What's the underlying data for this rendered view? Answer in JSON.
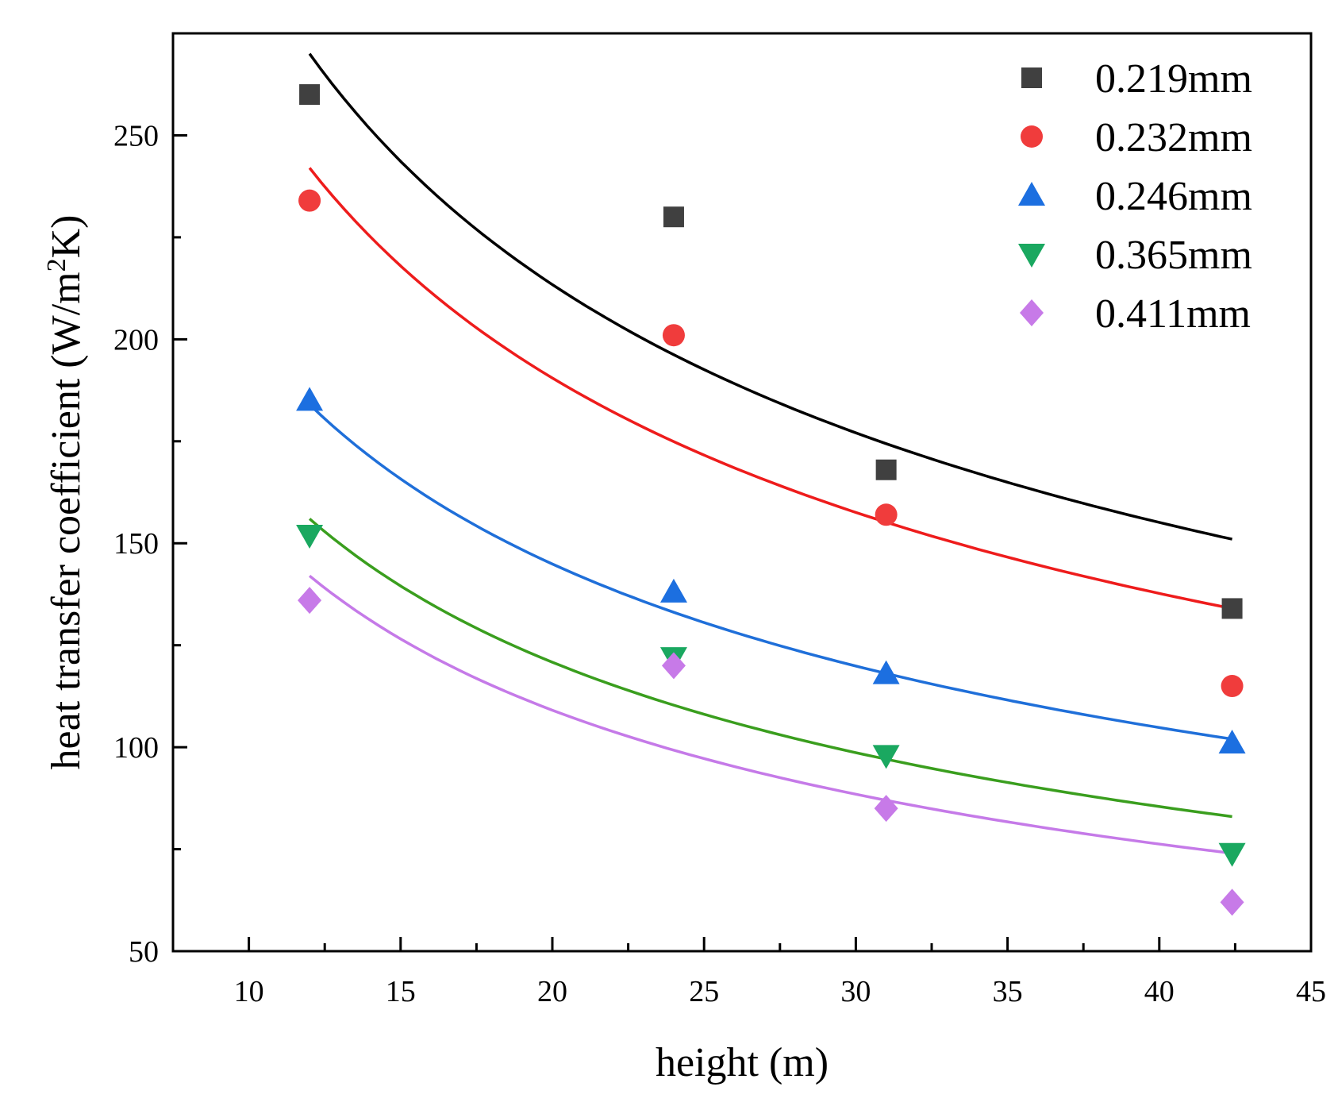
{
  "chart_data": {
    "type": "scatter",
    "title": "",
    "xlabel": "height (m)",
    "ylabel_parts": {
      "main": "heat transfer coefficient (W/m",
      "sup": "2",
      "end": "K)"
    },
    "xlim": [
      7.5,
      45
    ],
    "ylim": [
      50,
      275
    ],
    "xticks": [
      10,
      15,
      20,
      25,
      30,
      35,
      40,
      45
    ],
    "xticks_minor": [
      12.5,
      17.5,
      22.5,
      27.5,
      32.5,
      37.5,
      42.5
    ],
    "yticks": [
      50,
      100,
      150,
      200,
      250
    ],
    "yticks_minor": [
      75,
      125,
      175,
      225
    ],
    "x": [
      12,
      24,
      31,
      42.4
    ],
    "legend_position": "top-right",
    "series": [
      {
        "name": "0.219mm",
        "marker": "square",
        "color": "#404040",
        "line_color": "#000000",
        "values": [
          260,
          230,
          168,
          134
        ],
        "fit": [
          270,
          197,
          175,
          151
        ]
      },
      {
        "name": "0.232mm",
        "marker": "circle",
        "color": "#f03c3c",
        "line_color": "#ee1c1c",
        "values": [
          234,
          201,
          157,
          115
        ],
        "fit": [
          242,
          176,
          156,
          134
        ]
      },
      {
        "name": "0.246mm",
        "marker": "triangle-up",
        "color": "#1c6fe0",
        "line_color": "#1f6fd9",
        "values": [
          185,
          138,
          118,
          101
        ],
        "fit": [
          184,
          133,
          118,
          102
        ]
      },
      {
        "name": "0.365mm",
        "marker": "triangle-down",
        "color": "#1aa860",
        "line_color": "#3a9e1e",
        "values": [
          152,
          122,
          98,
          74
        ],
        "fit": [
          156,
          111,
          97,
          83
        ]
      },
      {
        "name": "0.411mm",
        "marker": "diamond",
        "color": "#c77ae8",
        "line_color": "#c57ae8",
        "values": [
          136,
          120,
          85,
          62
        ],
        "fit": [
          142,
          100,
          87,
          74
        ]
      }
    ]
  }
}
